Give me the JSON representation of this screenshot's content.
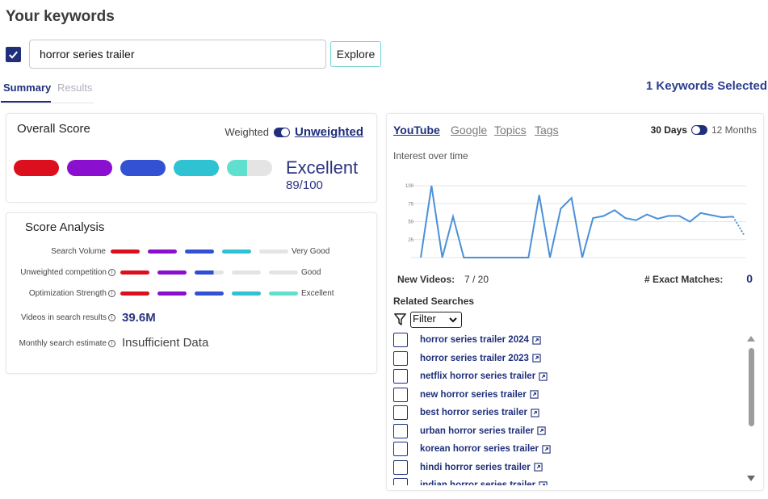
{
  "header": {
    "title": "Your keywords"
  },
  "search": {
    "value": "horror series trailer",
    "explore_label": "Explore"
  },
  "tabs": [
    {
      "label": "Summary"
    },
    {
      "label": "Results"
    }
  ],
  "selected_count": "1 Keywords Selected",
  "overall": {
    "title": "Overall Score",
    "weighted_label": "Weighted",
    "unweighted_label": "Unweighted",
    "rating": "Excellent",
    "score": "89/100",
    "colors": [
      "#dc0f1e",
      "#8a0fcf",
      "#3352d3",
      "#2ec2d3",
      "#5fe0cf"
    ]
  },
  "analysis": {
    "title": "Score Analysis",
    "rows": [
      {
        "label": "Search Volume",
        "verdict": "Very Good"
      },
      {
        "label": "Unweighted competition",
        "verdict": "Good"
      },
      {
        "label": "Optimization Strength",
        "verdict": "Excellent"
      }
    ],
    "videos_label": "Videos in search results",
    "videos_value": "39.6M",
    "monthly_label": "Monthly search estimate",
    "monthly_value": "Insufficient Data"
  },
  "trends": {
    "sources": [
      "YouTube",
      "Google",
      "Topics",
      "Tags"
    ],
    "days_label": "30 Days",
    "months_label": "12 Months",
    "interest_label": "Interest over time",
    "new_videos_label": "New Videos:",
    "new_videos_value": "7 / 20",
    "exact_label": "# Exact Matches:",
    "exact_value": "0",
    "related_title": "Related Searches",
    "filter_label": "Filter",
    "related": [
      "horror series trailer 2024",
      "horror series trailer 2023",
      "netflix horror series trailer",
      "new horror series trailer",
      "best horror series trailer",
      "urban horror series trailer",
      "korean horror series trailer",
      "hindi horror series trailer",
      "indian horror series trailer"
    ]
  },
  "chart_data": {
    "type": "line",
    "title": "Interest over time",
    "y_ticks": [
      "100",
      "75",
      "50",
      "25"
    ],
    "ylim": [
      0,
      100
    ],
    "values": [
      0,
      100,
      0,
      57,
      0,
      0,
      0,
      0,
      0,
      0,
      0,
      87,
      0,
      68,
      83,
      0,
      55,
      58,
      66,
      55,
      52,
      60,
      54,
      58,
      58,
      50,
      62,
      59,
      56,
      57,
      32
    ],
    "dotted_last_segment": true,
    "color": "#4a90d9"
  }
}
